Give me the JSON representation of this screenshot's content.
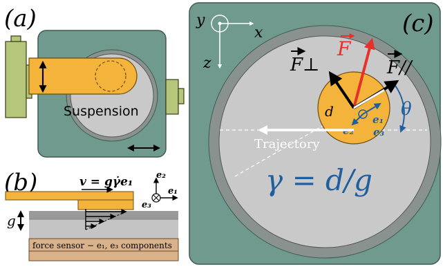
{
  "panels": {
    "a": {
      "label": "(a)",
      "suspension_label": "Suspension"
    },
    "b": {
      "label": "(b)",
      "velocity_label": "v = gγ̇e₁",
      "gap_label": "g",
      "sensor_label": "force sensor − e₁, e₃ components",
      "axes": {
        "e1": "e₁",
        "e2": "e₂",
        "e3": "e₃"
      }
    },
    "c": {
      "label": "(c)",
      "axis_x": "x",
      "axis_y": "y",
      "axis_z": "z",
      "force_total": "F",
      "force_perp": "F⊥",
      "force_parallel": "F//",
      "angle": "θ",
      "distance": "d",
      "unit_e1": "e₁",
      "unit_e2": "e₂",
      "unit_e3": "e₃",
      "trajectory_label": "Trajectory",
      "gamma_equation": "γ = d/g"
    }
  },
  "colors": {
    "housing_green": "#6f9a8d",
    "housing_stroke": "#3f5a52",
    "disk_gray": "#c9c9c9",
    "ring_gray": "#8a928f",
    "arm_orange": "#f4b43c",
    "clamp_olive": "#b5c77a",
    "sensor_tan": "#d9b28c",
    "force_red": "#e8302a",
    "accent_blue": "#1f5fa0"
  }
}
